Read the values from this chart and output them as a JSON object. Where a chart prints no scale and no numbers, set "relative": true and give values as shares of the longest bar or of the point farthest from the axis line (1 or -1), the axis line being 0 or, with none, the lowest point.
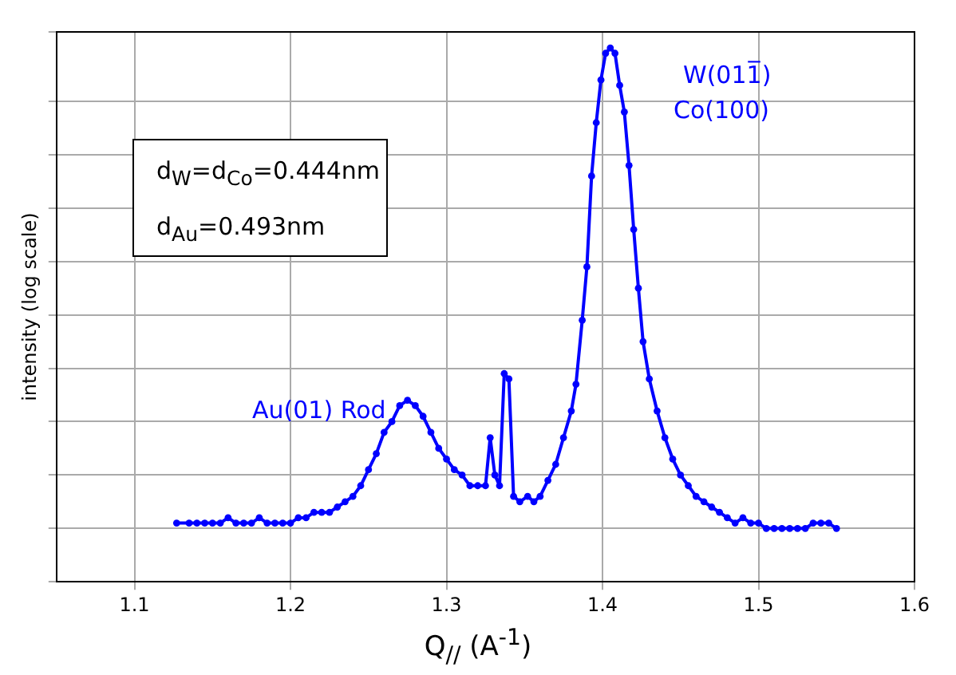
{
  "chart_data": {
    "type": "line",
    "relative": true,
    "xlabel": "Q$_{//}$ (A$^{-1}$)",
    "ylabel": "intensity (log scale)",
    "xlim": [
      1.05,
      1.6
    ],
    "xticks": [
      1.1,
      1.2,
      1.3,
      1.4,
      1.5,
      1.6
    ],
    "grid": true,
    "legend": false,
    "marker": "circle",
    "line_style": "solid",
    "annotations": [
      "d$_{W}$=d$_{Co}$=0.444nm",
      "d$_{Au}$=0.493nm",
      "Au(01) Rod",
      "W(011̅)",
      "Co(100)"
    ],
    "series": [
      {
        "color": "#0000ff",
        "x": [
          1.127,
          1.135,
          1.14,
          1.145,
          1.15,
          1.155,
          1.16,
          1.165,
          1.17,
          1.175,
          1.18,
          1.185,
          1.19,
          1.195,
          1.2,
          1.205,
          1.21,
          1.215,
          1.22,
          1.225,
          1.23,
          1.235,
          1.24,
          1.245,
          1.25,
          1.255,
          1.26,
          1.265,
          1.27,
          1.275,
          1.28,
          1.285,
          1.29,
          1.295,
          1.3,
          1.305,
          1.31,
          1.315,
          1.32,
          1.325,
          1.328,
          1.331,
          1.334,
          1.337,
          1.34,
          1.343,
          1.347,
          1.352,
          1.356,
          1.36,
          1.365,
          1.37,
          1.375,
          1.38,
          1.383,
          1.387,
          1.39,
          1.393,
          1.396,
          1.399,
          1.402,
          1.405,
          1.408,
          1.411,
          1.414,
          1.417,
          1.42,
          1.423,
          1.426,
          1.43,
          1.435,
          1.44,
          1.445,
          1.45,
          1.455,
          1.46,
          1.465,
          1.47,
          1.475,
          1.48,
          1.485,
          1.49,
          1.495,
          1.5,
          1.505,
          1.51,
          1.515,
          1.52,
          1.525,
          1.53,
          1.535,
          1.54,
          1.545,
          1.55
        ],
        "values": [
          0.11,
          0.11,
          0.11,
          0.11,
          0.11,
          0.11,
          0.12,
          0.11,
          0.11,
          0.11,
          0.12,
          0.11,
          0.11,
          0.11,
          0.11,
          0.12,
          0.12,
          0.13,
          0.13,
          0.13,
          0.14,
          0.15,
          0.16,
          0.18,
          0.21,
          0.24,
          0.28,
          0.3,
          0.33,
          0.34,
          0.33,
          0.31,
          0.28,
          0.25,
          0.23,
          0.21,
          0.2,
          0.18,
          0.18,
          0.18,
          0.27,
          0.2,
          0.18,
          0.39,
          0.38,
          0.16,
          0.15,
          0.16,
          0.15,
          0.16,
          0.19,
          0.22,
          0.27,
          0.32,
          0.37,
          0.49,
          0.59,
          0.76,
          0.86,
          0.94,
          0.99,
          1,
          0.99,
          0.93,
          0.88,
          0.78,
          0.66,
          0.55,
          0.45,
          0.38,
          0.32,
          0.27,
          0.23,
          0.2,
          0.18,
          0.16,
          0.15,
          0.14,
          0.13,
          0.12,
          0.11,
          0.12,
          0.11,
          0.11,
          0.1,
          0.1,
          0.1,
          0.1,
          0.1,
          0.1,
          0.11,
          0.11,
          0.11,
          0.1
        ]
      }
    ]
  }
}
